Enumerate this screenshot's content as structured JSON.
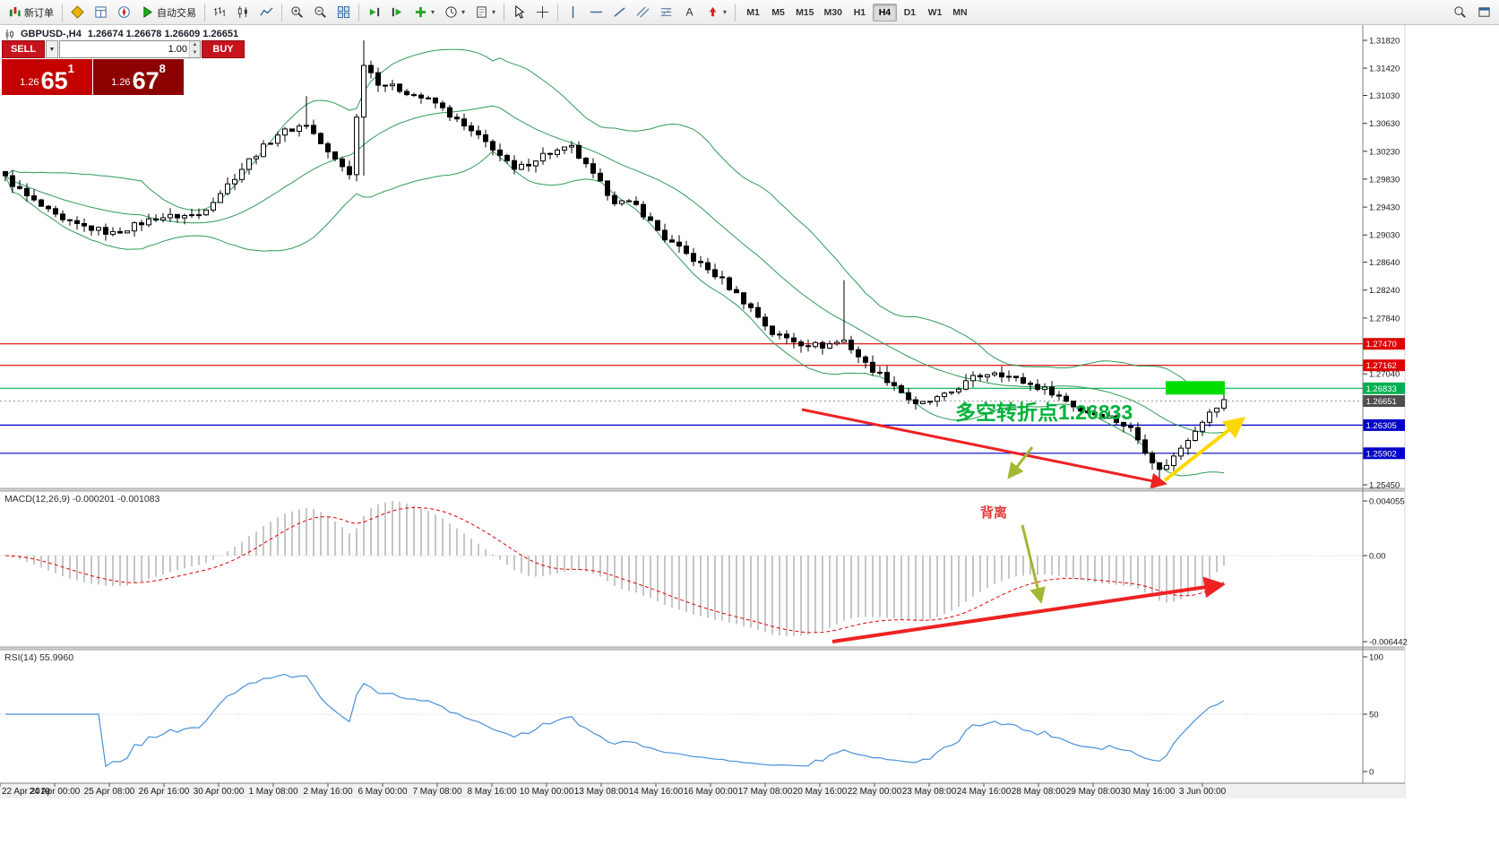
{
  "toolbar": {
    "items": [
      {
        "type": "button",
        "name": "new-order",
        "icon": "new-order",
        "label": "新订单"
      },
      {
        "type": "sep"
      },
      {
        "type": "button",
        "name": "market-watch",
        "icon": "market-watch"
      },
      {
        "type": "button",
        "name": "data-window",
        "icon": "data-window"
      },
      {
        "type": "button",
        "name": "navigator",
        "icon": "navigator"
      },
      {
        "type": "button",
        "name": "autotrading",
        "icon": "autotrading",
        "label": "自动交易"
      },
      {
        "type": "sep"
      },
      {
        "type": "button",
        "name": "bar-chart",
        "icon": "bar-chart"
      },
      {
        "type": "button",
        "name": "candle-chart",
        "icon": "candle-chart"
      },
      {
        "type": "button",
        "name": "line-chart",
        "icon": "line-chart"
      },
      {
        "type": "sep"
      },
      {
        "type": "button",
        "name": "zoom-in",
        "icon": "zoom-in"
      },
      {
        "type": "button",
        "name": "zoom-out",
        "icon": "zoom-out"
      },
      {
        "type": "button",
        "name": "tile-windows",
        "icon": "tile-windows"
      },
      {
        "type": "sep"
      },
      {
        "type": "button",
        "name": "auto-scroll",
        "icon": "auto-scroll"
      },
      {
        "type": "button",
        "name": "chart-shift",
        "icon": "chart-shift"
      },
      {
        "type": "button",
        "name": "indicators",
        "icon": "indicators",
        "caret": true
      },
      {
        "type": "button",
        "name": "periods",
        "icon": "periods",
        "caret": true
      },
      {
        "type": "button",
        "name": "templates",
        "icon": "templates",
        "caret": true
      },
      {
        "type": "sep"
      },
      {
        "type": "button",
        "name": "cursor",
        "icon": "cursor"
      },
      {
        "type": "button",
        "name": "crosshair",
        "icon": "crosshair"
      },
      {
        "type": "sep"
      },
      {
        "type": "button",
        "name": "vertical-line",
        "icon": "vertical-line"
      },
      {
        "type": "button",
        "name": "horizontal-line",
        "icon": "horizontal-line"
      },
      {
        "type": "button",
        "name": "trend-line",
        "icon": "trend-line"
      },
      {
        "type": "button",
        "name": "channel",
        "icon": "channel"
      },
      {
        "type": "button",
        "name": "fibonacci",
        "icon": "fibonacci"
      },
      {
        "type": "button",
        "name": "text",
        "icon": "text"
      },
      {
        "type": "button",
        "name": "arrows",
        "icon": "arrows",
        "caret": true
      },
      {
        "type": "sep"
      }
    ],
    "timeframes": [
      {
        "label": "M1"
      },
      {
        "label": "M5"
      },
      {
        "label": "M15"
      },
      {
        "label": "M30"
      },
      {
        "label": "H1"
      },
      {
        "label": "H4",
        "active": true
      },
      {
        "label": "D1"
      },
      {
        "label": "W1"
      },
      {
        "label": "MN"
      }
    ],
    "right_items": [
      {
        "name": "search",
        "icon": "search"
      },
      {
        "name": "full-screen",
        "icon": "full-screen"
      }
    ]
  },
  "chart": {
    "symbol_header": "GBPUSD-,H4",
    "ohlc": "1.26674 1.26678 1.26609 1.26651",
    "price_axis_labels": [
      {
        "label": "1.31820",
        "price": 1.3182
      },
      {
        "label": "1.31420",
        "price": 1.3142
      },
      {
        "label": "1.31030",
        "price": 1.3103
      },
      {
        "label": "1.30630",
        "price": 1.3063
      },
      {
        "label": "1.30230",
        "price": 1.3023
      },
      {
        "label": "1.29830",
        "price": 1.2983
      },
      {
        "label": "1.29430",
        "price": 1.2943
      },
      {
        "label": "1.29030",
        "price": 1.2903
      },
      {
        "label": "1.28640",
        "price": 1.2864
      },
      {
        "label": "1.28240",
        "price": 1.2824
      },
      {
        "label": "1.27840",
        "price": 1.2784
      },
      {
        "label": "1.27040",
        "price": 1.2704
      },
      {
        "label": "1.25450",
        "price": 1.2545
      }
    ],
    "price_tags": [
      {
        "label": "1.27470",
        "price": 1.2747,
        "bg": "#dd0000",
        "line": "solid"
      },
      {
        "label": "1.27162",
        "price": 1.27162,
        "bg": "#dd0000",
        "line": "solid"
      },
      {
        "label": "1.26833",
        "price": 1.26833,
        "bg": "#00b050",
        "line": "solid"
      },
      {
        "label": "1.26651",
        "price": 1.26651,
        "bg": "#4d4d4d",
        "line": "dotted"
      },
      {
        "label": "1.26305",
        "price": 1.26305,
        "bg": "#0000c8",
        "line": "solid"
      },
      {
        "label": "1.25902",
        "price": 1.25902,
        "bg": "#0000c8",
        "line": "solid"
      }
    ],
    "time_axis_labels": [
      "22 Apr 2019",
      "24 Apr 00:00",
      "25 Apr 08:00",
      "26 Apr 16:00",
      "30 Apr 00:00",
      "1 May 08:00",
      "2 May 16:00",
      "6 May 00:00",
      "7 May 08:00",
      "8 May 16:00",
      "10 May 00:00",
      "13 May 08:00",
      "14 May 16:00",
      "16 May 00:00",
      "17 May 08:00",
      "20 May 16:00",
      "22 May 00:00",
      "23 May 08:00",
      "24 May 16:00",
      "28 May 08:00",
      "29 May 08:00",
      "30 May 16:00",
      "3 Jun 00:00"
    ]
  },
  "trade_panel": {
    "sell_label": "SELL",
    "buy_label": "BUY",
    "volume": "1.00",
    "sell_price": {
      "prefix": "1.26",
      "big": "65",
      "sup": "1"
    },
    "buy_price": {
      "prefix": "1.26",
      "big": "67",
      "sup": "8"
    }
  },
  "indicators": {
    "macd_label": "MACD(12,26,9) -0.000201 -0.001083",
    "macd_axis": [
      "0.004055",
      "0.00",
      "-0.006442"
    ],
    "rsi_label": "RSI(14) 55.9960",
    "rsi_axis": [
      "100",
      "50",
      "0"
    ]
  },
  "annotations": {
    "turning_point": "多空转折点1.26833",
    "divergence": "背离"
  },
  "colors": {
    "band": "#2e9b57",
    "bull": "#ffffff",
    "bear": "#000000",
    "macd_hist": "#b8b8b8",
    "macd_signal": "#e00000",
    "rsi_line": "#4a90d9",
    "annotation_red": "#ee2222",
    "annotation_yellow": "#ffd800",
    "annotation_olive": "#a2b832",
    "annotation_green_fill": "#00dd00"
  },
  "chart_data": {
    "type": "candlestick",
    "symbol": "GBPUSD",
    "timeframe": "H4",
    "candle_count": 171,
    "price_range": [
      1.25399,
      1.32038
    ],
    "price_anchors": [
      [
        0,
        1.2985
      ],
      [
        3,
        1.2958
      ],
      [
        8,
        1.2922
      ],
      [
        15,
        1.2905
      ],
      [
        21,
        1.2928
      ],
      [
        27,
        1.2932
      ],
      [
        31,
        1.2975
      ],
      [
        34,
        1.301
      ],
      [
        38,
        1.3048
      ],
      [
        42,
        1.3062
      ],
      [
        45,
        1.302
      ],
      [
        48,
        1.2992
      ],
      [
        50,
        1.315
      ],
      [
        52,
        1.3122
      ],
      [
        56,
        1.3108
      ],
      [
        60,
        1.3092
      ],
      [
        64,
        1.3058
      ],
      [
        68,
        1.3028
      ],
      [
        71,
        1.2995
      ],
      [
        75,
        1.3018
      ],
      [
        79,
        1.3028
      ],
      [
        82,
        1.2988
      ],
      [
        85,
        1.2952
      ],
      [
        88,
        1.2945
      ],
      [
        92,
        1.2898
      ],
      [
        96,
        1.2868
      ],
      [
        100,
        1.2838
      ],
      [
        104,
        1.2798
      ],
      [
        107,
        1.2762
      ],
      [
        111,
        1.2748
      ],
      [
        114,
        1.2744
      ],
      [
        117,
        1.2752
      ],
      [
        120,
        1.2718
      ],
      [
        124,
        1.2688
      ],
      [
        127,
        1.2658
      ],
      [
        131,
        1.2672
      ],
      [
        135,
        1.2698
      ],
      [
        138,
        1.2708
      ],
      [
        142,
        1.2692
      ],
      [
        146,
        1.2678
      ],
      [
        150,
        1.2652
      ],
      [
        154,
        1.2642
      ],
      [
        157,
        1.2625
      ],
      [
        161,
        1.2565
      ],
      [
        163,
        1.2585
      ],
      [
        165,
        1.2612
      ],
      [
        167,
        1.2638
      ],
      [
        170,
        1.2665
      ]
    ],
    "special_candles": [
      {
        "i": 42,
        "high": 1.3102
      },
      {
        "i": 50,
        "high": 1.3182,
        "low": 1.2988
      },
      {
        "i": 117,
        "high": 1.2838
      },
      {
        "i": 161,
        "low": 1.2547
      }
    ],
    "bollinger": {
      "period": 20,
      "deviation": 2
    },
    "macd": {
      "fast": 12,
      "slow": 26,
      "signal": 9,
      "current": -0.000201,
      "current_signal": -0.001083
    },
    "rsi": {
      "period": 14,
      "current": 55.996
    },
    "horizontal_levels": [
      1.2747,
      1.27162,
      1.26833,
      1.26651,
      1.26305,
      1.25902
    ]
  }
}
